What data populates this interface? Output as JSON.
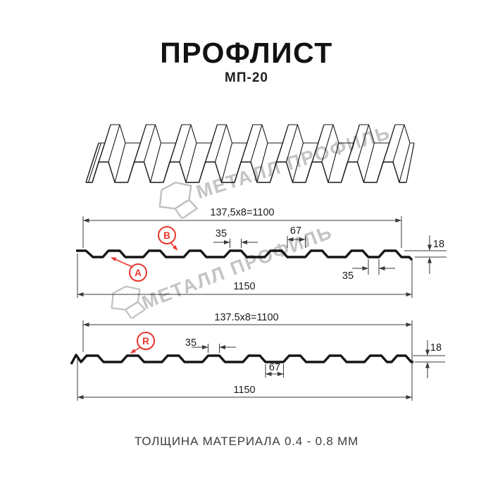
{
  "header": {
    "title": "ПРОФЛИСТ",
    "subtitle": "МП-20"
  },
  "watermark": {
    "text": "МЕТАЛЛ ПРОФИЛЬ",
    "logo": "metal-profil-logo"
  },
  "sections": {
    "top": {
      "dim_width_formula": "137,5x8=1100",
      "dim_rib_top": "35",
      "dim_flat": "67",
      "dim_height": "18",
      "dim_edge_gap": "35",
      "dim_total_width": "1150",
      "label_a": "A",
      "label_b": "B"
    },
    "bottom": {
      "dim_width_formula": "137.5x8=1100",
      "dim_rib_top": "35",
      "dim_flat": "67",
      "dim_height": "18",
      "dim_total_width": "1150",
      "label_r": "R"
    }
  },
  "footer": {
    "text": "ТОЛЩИНА МАТЕРИАЛА 0.4 - 0.8 ММ"
  },
  "colors": {
    "accent_red": "#e8352b",
    "line": "#161616",
    "dim_line": "#3a3a3a",
    "watermark": "#c4c4c4"
  }
}
